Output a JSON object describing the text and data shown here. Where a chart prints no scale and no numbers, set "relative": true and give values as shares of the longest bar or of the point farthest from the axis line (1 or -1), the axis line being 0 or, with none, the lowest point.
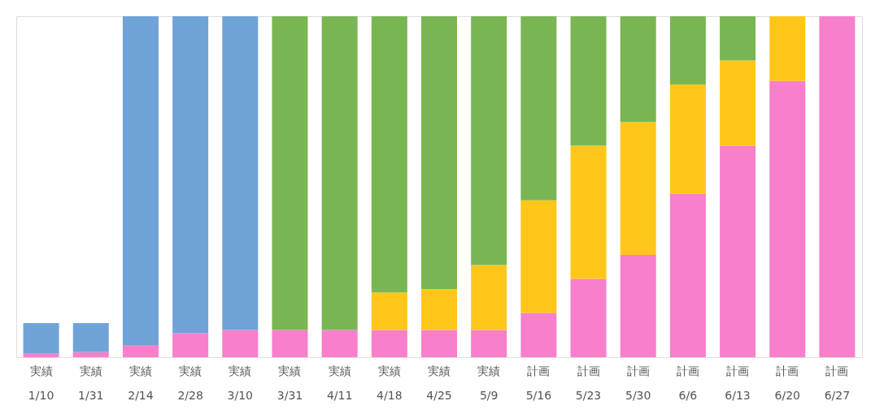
{
  "chart_data": {
    "type": "bar",
    "relative": true,
    "stacked": true,
    "categories": [
      "実績\n1/10",
      "実績\n1/31",
      "実績\n2/14",
      "実績\n2/28",
      "実績\n3/10",
      "実績\n3/31",
      "実績\n4/11",
      "実績\n4/18",
      "実績\n4/25",
      "実績\n5/9",
      "計画\n5/16",
      "計画\n5/23",
      "計画\n5/30",
      "計画\n6/6",
      "計画\n6/13",
      "計画\n6/20",
      "計画\n6/27"
    ],
    "series": [
      {
        "color": "#f77fcb",
        "values": [
          0.01,
          0.015,
          0.036,
          0.07,
          0.08,
          0.08,
          0.08,
          0.08,
          0.08,
          0.08,
          0.13,
          0.23,
          0.3,
          0.48,
          0.62,
          0.81,
          1.0
        ]
      },
      {
        "color": "#ffc61a",
        "values": [
          0,
          0,
          0,
          0,
          0,
          0,
          0,
          0.11,
          0.12,
          0.19,
          0.33,
          0.39,
          0.39,
          0.32,
          0.25,
          0.19,
          0
        ]
      },
      {
        "colors": [
          "#6fa3d8",
          "#6fa3d8",
          "#6fa3d8",
          "#6fa3d8",
          "#6fa3d8",
          "#7ab554",
          "#7ab554",
          "#7ab554",
          "#7ab554",
          "#7ab554",
          "#7ab554",
          "#7ab554",
          "#7ab554",
          "#7ab554",
          "#7ab554",
          "#7ab554",
          "#7ab554"
        ],
        "values": [
          0.09,
          0.085,
          0.964,
          0.93,
          0.92,
          0.92,
          0.92,
          0.81,
          0.8,
          0.73,
          0.54,
          0.38,
          0.31,
          0.2,
          0.13,
          0,
          0
        ]
      }
    ]
  }
}
